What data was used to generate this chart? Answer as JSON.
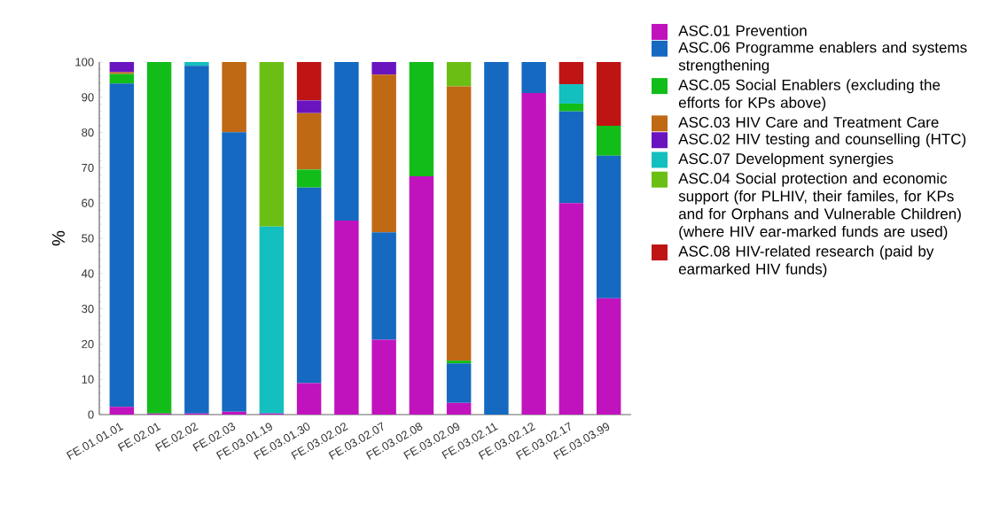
{
  "chart_data": {
    "type": "bar",
    "stacked": true,
    "ylabel": "%",
    "categories": [
      "FE.01.01.01",
      "FE.02.01",
      "FE.02.02",
      "FE.02.03",
      "FE.03.01.19",
      "FE.03.01.30",
      "FE.03.02.02",
      "FE.03.02.07",
      "FE.03.02.08",
      "FE.03.02.09",
      "FE.03.02.11",
      "FE.03.02.12",
      "FE.03.02.17",
      "FE.03.03.99"
    ],
    "series": [
      {
        "name": "ASC.01 Prevention",
        "color": "#c013bd",
        "values": [
          2.2,
          0.3,
          0.3,
          0.8,
          0.3,
          8.9,
          55.0,
          21.2,
          67.6,
          3.3,
          null,
          91.2,
          60.0,
          33.0
        ]
      },
      {
        "name": "ASC.06 Programme enablers and systems strengthening",
        "color": "#1569c1",
        "values": [
          91.7,
          null,
          98.6,
          79.3,
          null,
          55.5,
          45.0,
          30.5,
          null,
          11.2,
          100,
          8.8,
          26.0,
          40.4
        ]
      },
      {
        "name": "ASC.05 Social Enablers (excluding the efforts for KPs above)",
        "color": "#13bd19",
        "values": [
          2.7,
          99.7,
          null,
          null,
          null,
          5.1,
          null,
          null,
          32.4,
          0.8,
          null,
          null,
          2.2,
          8.5
        ]
      },
      {
        "name": "ASC.03 HIV Care and Treatment Care",
        "color": "#bf6914",
        "values": [
          0.5,
          null,
          null,
          19.9,
          null,
          16.0,
          null,
          44.7,
          null,
          77.8,
          null,
          null,
          null,
          null
        ]
      },
      {
        "name": "ASC.02 HIV testing and counselling (HTC)",
        "color": "#6a14bf",
        "values": [
          2.9,
          null,
          null,
          null,
          null,
          3.6,
          null,
          3.6,
          null,
          null,
          null,
          null,
          null,
          null
        ]
      },
      {
        "name": "ASC.07 Development synergies",
        "color": "#14bfbf",
        "values": [
          null,
          null,
          1.1,
          null,
          53.0,
          null,
          null,
          null,
          null,
          null,
          null,
          null,
          5.5,
          null
        ]
      },
      {
        "name": "ASC.04 Social protection and economic support (for PLHIV, their familes, for KPs and for Orphans and Vulnerable Children) (where HIV ear-marked funds are used)",
        "color": "#6bbf14",
        "values": [
          null,
          null,
          null,
          null,
          46.7,
          null,
          null,
          null,
          null,
          6.9,
          null,
          null,
          null,
          null
        ]
      },
      {
        "name": "ASC.08 HIV-related research (paid by earmarked HIV funds)",
        "color": "#bf1414",
        "values": [
          null,
          null,
          null,
          null,
          null,
          10.9,
          null,
          null,
          null,
          null,
          null,
          null,
          6.3,
          18.1
        ]
      }
    ],
    "ylim": [
      0,
      100
    ],
    "yticks": [
      0,
      10,
      20,
      30,
      40,
      50,
      60,
      70,
      80,
      90,
      100
    ],
    "grid": false,
    "legend": "right"
  }
}
